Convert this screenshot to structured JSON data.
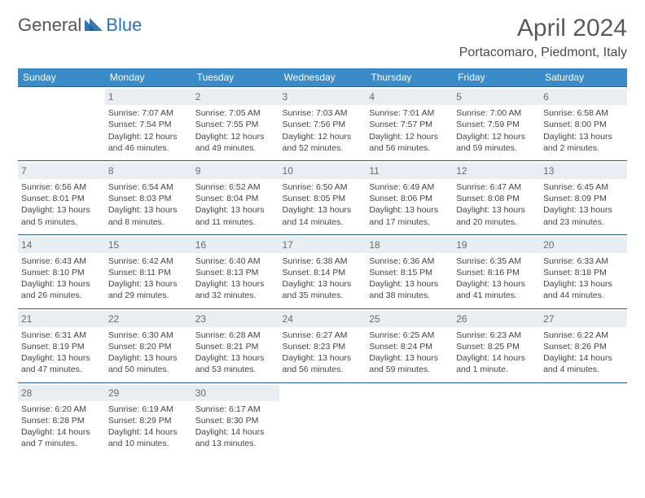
{
  "logo": {
    "text1": "General",
    "text2": "Blue"
  },
  "title": "April 2024",
  "location": "Portacomaro, Piedmont, Italy",
  "colors": {
    "header_bg": "#3b8bc8",
    "header_text": "#ffffff",
    "row_border": "#2a5f8a",
    "daynum_bg": "#e9eef2",
    "daynum_text": "#6a6a6a",
    "body_text": "#444444",
    "logo_blue": "#2a74b8"
  },
  "weekdays": [
    "Sunday",
    "Monday",
    "Tuesday",
    "Wednesday",
    "Thursday",
    "Friday",
    "Saturday"
  ],
  "weeks": [
    [
      {
        "blank": true
      },
      {
        "d": "1",
        "sr": "Sunrise: 7:07 AM",
        "ss": "Sunset: 7:54 PM",
        "dl": "Daylight: 12 hours and 46 minutes."
      },
      {
        "d": "2",
        "sr": "Sunrise: 7:05 AM",
        "ss": "Sunset: 7:55 PM",
        "dl": "Daylight: 12 hours and 49 minutes."
      },
      {
        "d": "3",
        "sr": "Sunrise: 7:03 AM",
        "ss": "Sunset: 7:56 PM",
        "dl": "Daylight: 12 hours and 52 minutes."
      },
      {
        "d": "4",
        "sr": "Sunrise: 7:01 AM",
        "ss": "Sunset: 7:57 PM",
        "dl": "Daylight: 12 hours and 56 minutes."
      },
      {
        "d": "5",
        "sr": "Sunrise: 7:00 AM",
        "ss": "Sunset: 7:59 PM",
        "dl": "Daylight: 12 hours and 59 minutes."
      },
      {
        "d": "6",
        "sr": "Sunrise: 6:58 AM",
        "ss": "Sunset: 8:00 PM",
        "dl": "Daylight: 13 hours and 2 minutes."
      }
    ],
    [
      {
        "d": "7",
        "sr": "Sunrise: 6:56 AM",
        "ss": "Sunset: 8:01 PM",
        "dl": "Daylight: 13 hours and 5 minutes."
      },
      {
        "d": "8",
        "sr": "Sunrise: 6:54 AM",
        "ss": "Sunset: 8:03 PM",
        "dl": "Daylight: 13 hours and 8 minutes."
      },
      {
        "d": "9",
        "sr": "Sunrise: 6:52 AM",
        "ss": "Sunset: 8:04 PM",
        "dl": "Daylight: 13 hours and 11 minutes."
      },
      {
        "d": "10",
        "sr": "Sunrise: 6:50 AM",
        "ss": "Sunset: 8:05 PM",
        "dl": "Daylight: 13 hours and 14 minutes."
      },
      {
        "d": "11",
        "sr": "Sunrise: 6:49 AM",
        "ss": "Sunset: 8:06 PM",
        "dl": "Daylight: 13 hours and 17 minutes."
      },
      {
        "d": "12",
        "sr": "Sunrise: 6:47 AM",
        "ss": "Sunset: 8:08 PM",
        "dl": "Daylight: 13 hours and 20 minutes."
      },
      {
        "d": "13",
        "sr": "Sunrise: 6:45 AM",
        "ss": "Sunset: 8:09 PM",
        "dl": "Daylight: 13 hours and 23 minutes."
      }
    ],
    [
      {
        "d": "14",
        "sr": "Sunrise: 6:43 AM",
        "ss": "Sunset: 8:10 PM",
        "dl": "Daylight: 13 hours and 26 minutes."
      },
      {
        "d": "15",
        "sr": "Sunrise: 6:42 AM",
        "ss": "Sunset: 8:11 PM",
        "dl": "Daylight: 13 hours and 29 minutes."
      },
      {
        "d": "16",
        "sr": "Sunrise: 6:40 AM",
        "ss": "Sunset: 8:13 PM",
        "dl": "Daylight: 13 hours and 32 minutes."
      },
      {
        "d": "17",
        "sr": "Sunrise: 6:38 AM",
        "ss": "Sunset: 8:14 PM",
        "dl": "Daylight: 13 hours and 35 minutes."
      },
      {
        "d": "18",
        "sr": "Sunrise: 6:36 AM",
        "ss": "Sunset: 8:15 PM",
        "dl": "Daylight: 13 hours and 38 minutes."
      },
      {
        "d": "19",
        "sr": "Sunrise: 6:35 AM",
        "ss": "Sunset: 8:16 PM",
        "dl": "Daylight: 13 hours and 41 minutes."
      },
      {
        "d": "20",
        "sr": "Sunrise: 6:33 AM",
        "ss": "Sunset: 8:18 PM",
        "dl": "Daylight: 13 hours and 44 minutes."
      }
    ],
    [
      {
        "d": "21",
        "sr": "Sunrise: 6:31 AM",
        "ss": "Sunset: 8:19 PM",
        "dl": "Daylight: 13 hours and 47 minutes."
      },
      {
        "d": "22",
        "sr": "Sunrise: 6:30 AM",
        "ss": "Sunset: 8:20 PM",
        "dl": "Daylight: 13 hours and 50 minutes."
      },
      {
        "d": "23",
        "sr": "Sunrise: 6:28 AM",
        "ss": "Sunset: 8:21 PM",
        "dl": "Daylight: 13 hours and 53 minutes."
      },
      {
        "d": "24",
        "sr": "Sunrise: 6:27 AM",
        "ss": "Sunset: 8:23 PM",
        "dl": "Daylight: 13 hours and 56 minutes."
      },
      {
        "d": "25",
        "sr": "Sunrise: 6:25 AM",
        "ss": "Sunset: 8:24 PM",
        "dl": "Daylight: 13 hours and 59 minutes."
      },
      {
        "d": "26",
        "sr": "Sunrise: 6:23 AM",
        "ss": "Sunset: 8:25 PM",
        "dl": "Daylight: 14 hours and 1 minute."
      },
      {
        "d": "27",
        "sr": "Sunrise: 6:22 AM",
        "ss": "Sunset: 8:26 PM",
        "dl": "Daylight: 14 hours and 4 minutes."
      }
    ],
    [
      {
        "d": "28",
        "sr": "Sunrise: 6:20 AM",
        "ss": "Sunset: 8:28 PM",
        "dl": "Daylight: 14 hours and 7 minutes."
      },
      {
        "d": "29",
        "sr": "Sunrise: 6:19 AM",
        "ss": "Sunset: 8:29 PM",
        "dl": "Daylight: 14 hours and 10 minutes."
      },
      {
        "d": "30",
        "sr": "Sunrise: 6:17 AM",
        "ss": "Sunset: 8:30 PM",
        "dl": "Daylight: 14 hours and 13 minutes."
      },
      {
        "blank": true
      },
      {
        "blank": true
      },
      {
        "blank": true
      },
      {
        "blank": true
      }
    ]
  ]
}
